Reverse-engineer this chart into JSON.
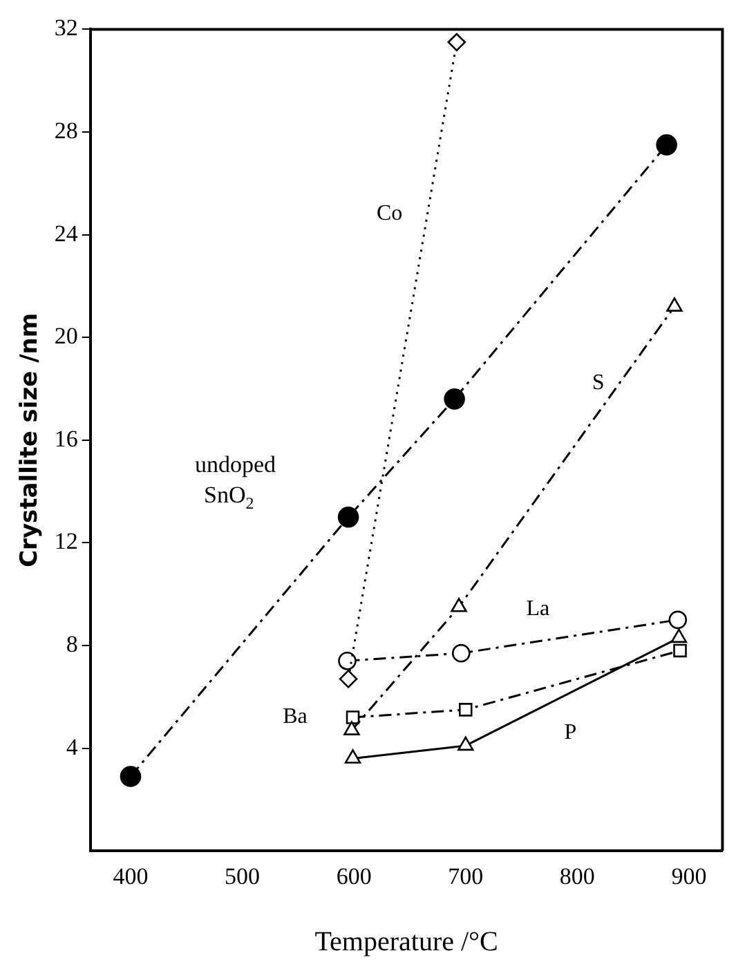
{
  "chart_data": {
    "type": "line",
    "xlabel": "Temperature /°C",
    "ylabel": "Crystallite size /nm",
    "xlim": [
      364,
      930
    ],
    "xticks": [
      400,
      500,
      600,
      700,
      800,
      900
    ],
    "ylim": [
      0,
      32
    ],
    "yticks": [
      4,
      8,
      12,
      16,
      20,
      24,
      28,
      32
    ],
    "grid": false,
    "legend": false,
    "series": [
      {
        "name": "undoped SnO$_{2}$",
        "color": "#000000",
        "marker": "circle",
        "line_style": "dashed",
        "x": [
          400,
          595,
          690,
          880
        ],
        "values": [
          2.9,
          13,
          17.6,
          27.5
        ]
      },
      {
        "name": "Co",
        "color": "#000000",
        "marker": "diamond",
        "line_style": "dotted",
        "x": [
          595,
          692
        ],
        "values": [
          6.7,
          31.5
        ]
      },
      {
        "name": "S",
        "color": "#000000",
        "marker": "triangle",
        "line_style": "dashed",
        "x": [
          598,
          694,
          887
        ],
        "values": [
          4.7,
          9.5,
          21.2
        ]
      },
      {
        "name": "La",
        "color": "#000000",
        "marker": "circle",
        "line_style": "dashed",
        "x": [
          594,
          696,
          890
        ],
        "values": [
          7.4,
          7.7,
          9.0
        ]
      },
      {
        "name": "Ba",
        "color": "#000000",
        "marker": "square",
        "line_style": "dashed",
        "x": [
          599,
          700,
          892
        ],
        "values": [
          5.2,
          5.5,
          7.8
        ]
      },
      {
        "name": "P",
        "color": "#000000",
        "marker": "triangle",
        "line_style": "solid",
        "x": [
          599,
          700,
          891
        ],
        "values": [
          3.6,
          4.1,
          8.3
        ]
      }
    ]
  }
}
